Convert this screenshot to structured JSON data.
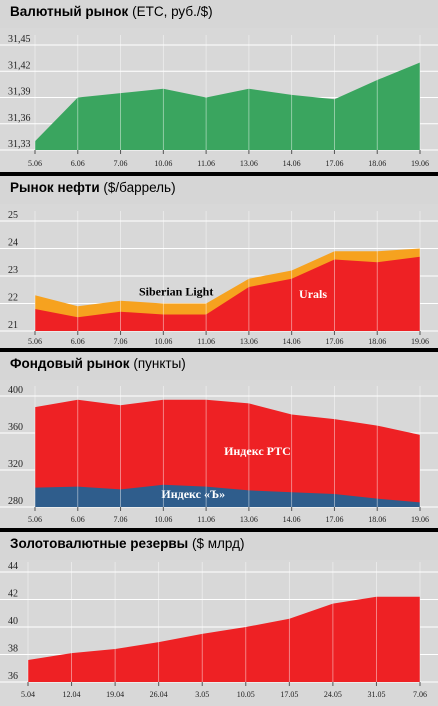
{
  "chart_data": [
    {
      "type": "area",
      "title": "Валютный рынок",
      "subtitle": "(ЕТС, руб./$)",
      "categories": [
        "5.06",
        "6.06",
        "7.06",
        "10.06",
        "11.06",
        "13.06",
        "14.06",
        "17.06",
        "18.06",
        "19.06"
      ],
      "yticks": [
        "31,45",
        "31,42",
        "31,39",
        "31,36",
        "31,33"
      ],
      "ylim": [
        31.33,
        31.45
      ],
      "series": [
        {
          "values": [
            31.34,
            31.39,
            31.395,
            31.4,
            31.39,
            31.4,
            31.393,
            31.388,
            31.41,
            31.43
          ],
          "color": "#3aa55f"
        }
      ],
      "grid": true
    },
    {
      "type": "area",
      "title": "Рынок нефти",
      "subtitle": "($/баррель)",
      "categories": [
        "5.06",
        "6.06",
        "7.06",
        "10.06",
        "11.06",
        "13.06",
        "14.06",
        "17.06",
        "18.06",
        "19.06"
      ],
      "yticks": [
        "25",
        "24",
        "23",
        "22",
        "21"
      ],
      "ylim": [
        21,
        25
      ],
      "series": [
        {
          "name": "Siberian Light",
          "values": [
            22.3,
            21.9,
            22.1,
            22.0,
            22.0,
            22.9,
            23.2,
            23.9,
            23.9,
            24.0
          ],
          "color": "#f6a21f"
        },
        {
          "name": "Urals",
          "values": [
            21.8,
            21.5,
            21.7,
            21.6,
            21.6,
            22.6,
            22.9,
            23.6,
            23.5,
            23.7
          ],
          "color": "#ee2124"
        }
      ],
      "grid": true
    },
    {
      "type": "area",
      "title": "Фондовый рынок",
      "subtitle": "(пункты)",
      "categories": [
        "5.06",
        "6.06",
        "7.06",
        "10.06",
        "11.06",
        "13.06",
        "14.06",
        "17.06",
        "18.06",
        "19.06"
      ],
      "yticks": [
        "400",
        "360",
        "320",
        "280"
      ],
      "ylim": [
        280,
        400
      ],
      "series": [
        {
          "name": "Индекс РТС",
          "values": [
            388,
            396,
            390,
            396,
            396,
            392,
            380,
            375,
            368,
            358
          ],
          "color": "#ee2124"
        },
        {
          "name": "Индекс «Ъ»",
          "values": [
            301,
            302,
            299,
            304,
            302,
            298,
            296,
            294,
            289,
            285
          ],
          "color": "#2f5d8c"
        }
      ],
      "grid": true
    },
    {
      "type": "area",
      "title": "Золотовалютные резервы",
      "subtitle": "($ млрд)",
      "categories": [
        "5.04",
        "12.04",
        "19.04",
        "26.04",
        "3.05",
        "10.05",
        "17.05",
        "24.05",
        "31.05",
        "7.06"
      ],
      "yticks": [
        "44",
        "42",
        "40",
        "38",
        "36"
      ],
      "ylim": [
        36,
        44
      ],
      "series": [
        {
          "values": [
            37.6,
            38.1,
            38.4,
            38.9,
            39.5,
            40.0,
            40.6,
            41.7,
            42.2,
            42.2
          ],
          "color": "#ee2124"
        }
      ],
      "grid": true
    }
  ]
}
